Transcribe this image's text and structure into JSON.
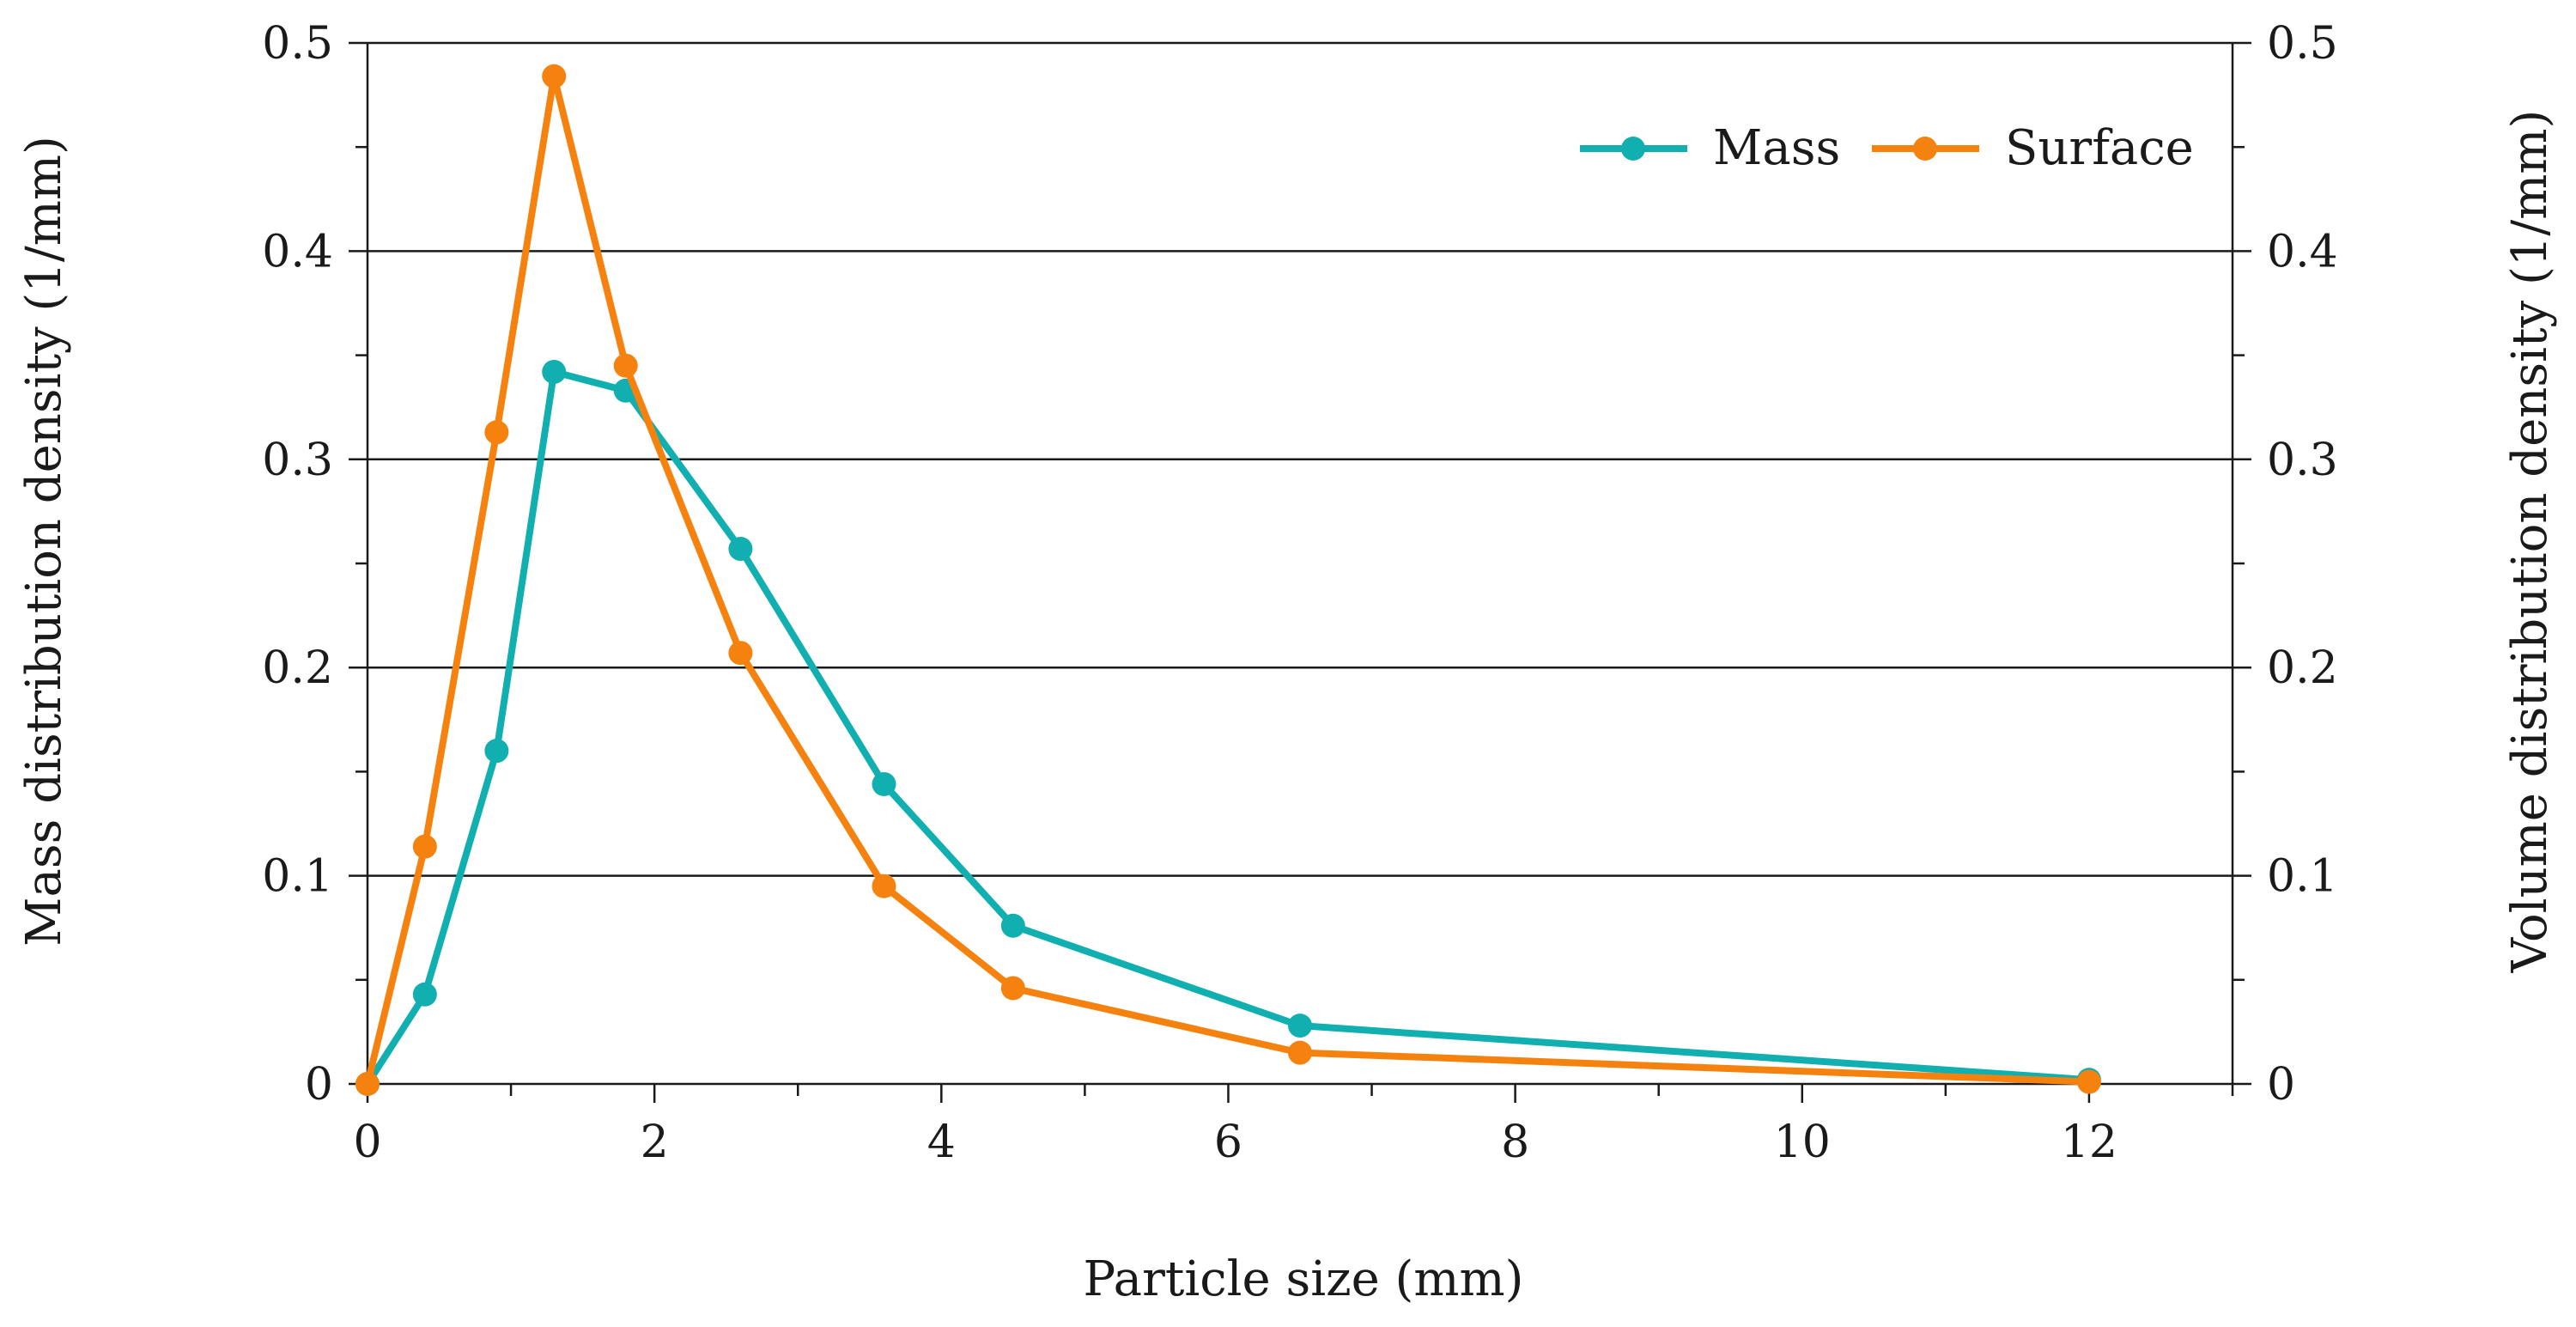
{
  "chart_data": {
    "type": "line",
    "title": "",
    "xlabel": "Particle size (mm)",
    "ylabel": "Mass distribution density (1/mm)",
    "y2label": "Volume distribution density (1/mm)",
    "xlim": [
      0,
      13
    ],
    "ylim": [
      0,
      0.5
    ],
    "y2lim": [
      0,
      0.5
    ],
    "x_ticks": [
      0,
      2,
      4,
      6,
      8,
      10,
      12
    ],
    "y_ticks": [
      0,
      0.1,
      0.2,
      0.3,
      0.4,
      0.5
    ],
    "y_tick_labels": [
      "0",
      "0.1",
      "0.2",
      "0.3",
      "0.4",
      "0.5"
    ],
    "y2_tick_labels": [
      "0",
      "0.1",
      "0.2",
      "0.3",
      "0.4",
      "0.5"
    ],
    "grid": "horizontal",
    "legend_position": "top-right",
    "series": [
      {
        "name": "Mass",
        "color": "#12AFB0",
        "x": [
          0,
          0.4,
          0.9,
          1.3,
          1.8,
          2.6,
          3.6,
          4.5,
          6.5,
          12
        ],
        "y": [
          0,
          0.043,
          0.16,
          0.342,
          0.333,
          0.257,
          0.144,
          0.076,
          0.028,
          0.002
        ]
      },
      {
        "name": "Surface",
        "color": "#F5820E",
        "x": [
          0,
          0.4,
          0.9,
          1.3,
          1.8,
          2.6,
          3.6,
          4.5,
          6.5,
          12
        ],
        "y": [
          0,
          0.114,
          0.313,
          0.484,
          0.345,
          0.207,
          0.095,
          0.046,
          0.015,
          0.001
        ]
      }
    ]
  }
}
